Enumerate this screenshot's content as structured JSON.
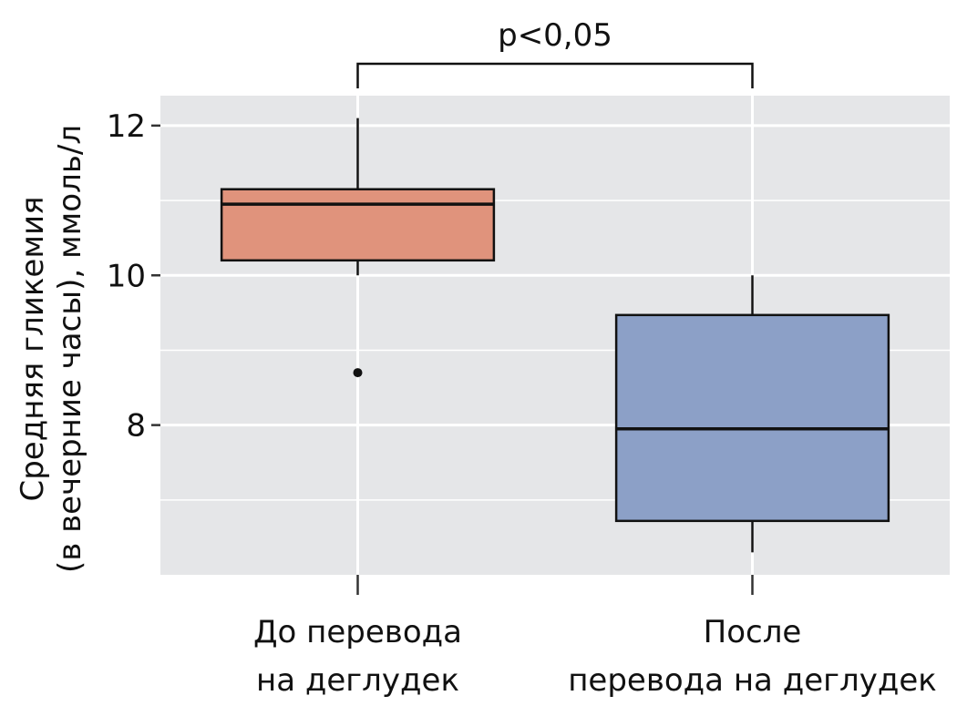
{
  "chart_data": {
    "type": "boxplot",
    "title": "",
    "xlabel": "",
    "ylabel_lines": [
      "Средняя гликемия",
      "(в вечерние часы), ммоль/л"
    ],
    "ylim": [
      6.0,
      12.4
    ],
    "y_ticks": [
      8,
      10,
      12
    ],
    "y_tick_labels": [
      "8",
      "10",
      "12"
    ],
    "y_minor_gridlines": [
      7,
      9,
      11
    ],
    "grid": true,
    "panel_background": "#e5e6e8",
    "categories": [
      {
        "label_lines": [
          "До перевода",
          "на деглудек"
        ]
      },
      {
        "label_lines": [
          "После",
          "перевода на деглудек"
        ]
      }
    ],
    "boxes": [
      {
        "whisker_low": 10.0,
        "q1": 10.2,
        "median": 10.95,
        "q3": 11.15,
        "whisker_high": 12.1,
        "outliers": [
          8.7
        ],
        "color": "#e0937c"
      },
      {
        "whisker_low": 6.3,
        "q1": 6.72,
        "median": 7.95,
        "q3": 9.47,
        "whisker_high": 10.0,
        "outliers": [],
        "color": "#8ca0c7"
      }
    ],
    "significance": {
      "label": "p<0,05",
      "from": 0,
      "to": 1
    }
  }
}
